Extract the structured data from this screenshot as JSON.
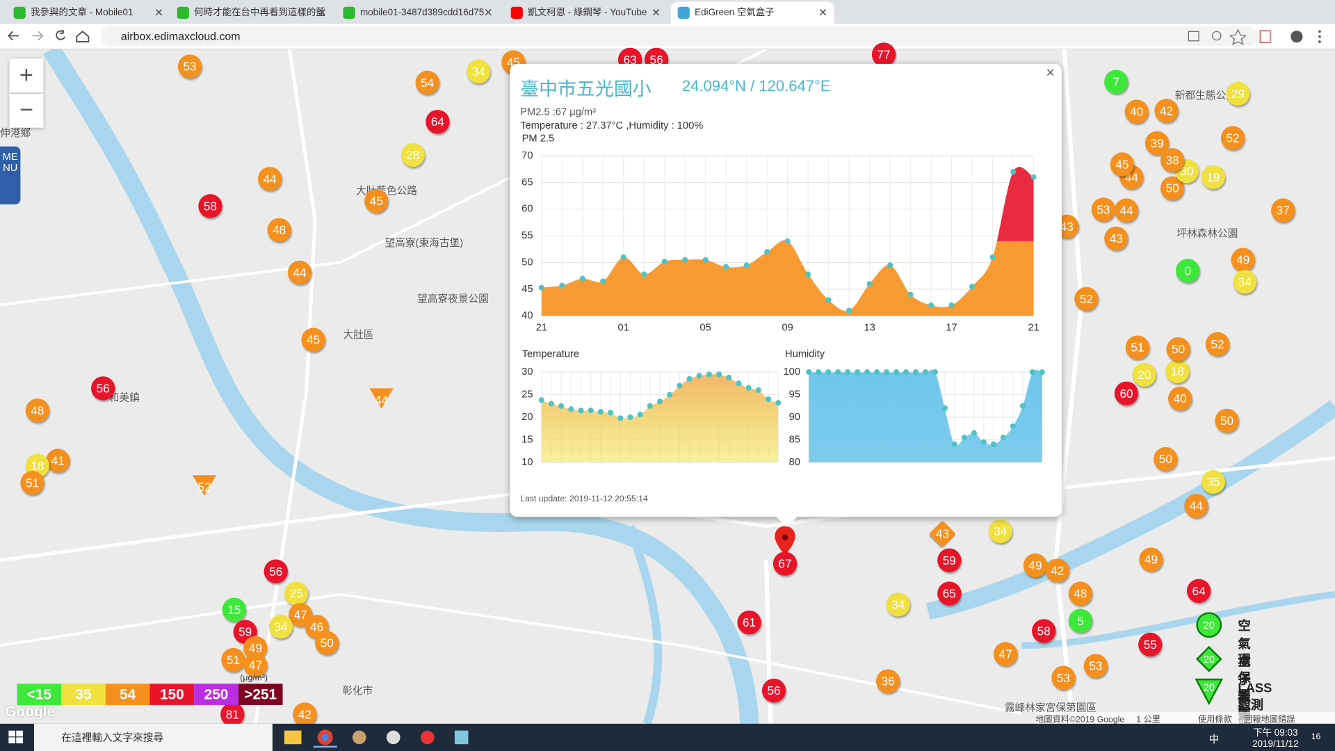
{
  "browser": {
    "tabs": [
      "我參與的文章 - Mobile01",
      "何時才能在台中再看到這樣的藍",
      "mobile01-3487d389cdd16d75",
      "凱文柯恩 - 綠鋼琴 - YouTube",
      "EdiGreen 空氣盒子"
    ],
    "url": "airbox.edimaxcloud.com"
  },
  "map": {
    "zoom_in": "+",
    "zoom_out": "−",
    "menu": "MENU",
    "places": [
      "大肚區",
      "彰化市",
      "望高寮(東海古堡)",
      "望高寮夜景公園",
      "大肚藍色公路",
      "伸港鄉",
      "和美鎮",
      "坪林森林公園",
      "新都生態公園",
      "霧峰林家宮保第園區"
    ],
    "markers": [
      53,
      54,
      34,
      45,
      63,
      56,
      77,
      64,
      28,
      44,
      45,
      58,
      48,
      44,
      45,
      44,
      56,
      48,
      41,
      18,
      51,
      52,
      56,
      25,
      15,
      47,
      34,
      46,
      59,
      50,
      49,
      51,
      47,
      42,
      81,
      67,
      61,
      56,
      43,
      34,
      59,
      65,
      34,
      36,
      49,
      42,
      48,
      5,
      58,
      47,
      53,
      53,
      55,
      64,
      49,
      44,
      35,
      50,
      50,
      60,
      40,
      20,
      18,
      51,
      50,
      52,
      52,
      0,
      49,
      34,
      43,
      53,
      44,
      37,
      43,
      44,
      45,
      50,
      30,
      19,
      39,
      38,
      52,
      40,
      42,
      7,
      29
    ]
  },
  "popup": {
    "close": "×",
    "title": "臺中市五光國小",
    "coords": "24.094°N / 120.647°E",
    "pm": "PM2.5 :67 μg/m³",
    "env": "Temperature : 27.37°C ,Humidity : 100%",
    "updated": "Last update: 2019-11-12 20:55:14"
  },
  "chart_data": [
    {
      "type": "area",
      "title": "PM 2.5",
      "categories": [
        "21",
        null,
        null,
        null,
        "01",
        null,
        null,
        null,
        "05",
        null,
        null,
        null,
        "09",
        null,
        null,
        null,
        "13",
        null,
        null,
        null,
        "17",
        null,
        null,
        null,
        "21"
      ],
      "values": [
        45.3,
        45.7,
        47,
        46.5,
        51,
        47.8,
        50.2,
        50.5,
        50.5,
        49.2,
        49.5,
        52,
        54,
        47.8,
        43,
        41,
        46,
        49.5,
        44,
        42,
        42,
        45.5,
        51,
        67,
        66
      ],
      "ylim": [
        40,
        70
      ],
      "yticks": [
        40,
        45,
        50,
        55,
        60,
        65,
        70
      ],
      "grid": true,
      "color": "#4fc3c3"
    },
    {
      "type": "area",
      "title": "Temperature",
      "values": [
        23.8,
        23,
        22.5,
        21.8,
        21.5,
        21.5,
        21.2,
        21,
        19.8,
        20,
        20.6,
        22.5,
        23.5,
        25,
        27,
        28.5,
        29.2,
        29.5,
        29.5,
        28.8,
        27.5,
        26.5,
        26,
        24,
        23.2
      ],
      "ylim": [
        10,
        30
      ],
      "yticks": [
        10,
        15,
        20,
        25,
        30
      ],
      "grid": true,
      "color": "#f2b46a"
    },
    {
      "type": "area",
      "title": "Humidity",
      "values": [
        100,
        100,
        100,
        100,
        100,
        100,
        100,
        100,
        100,
        100,
        100,
        100,
        100,
        100,
        92,
        84,
        85.5,
        86.5,
        84.5,
        84,
        85.5,
        88,
        92.5,
        100,
        100
      ],
      "ylim": [
        80,
        100
      ],
      "yticks": [
        80,
        85,
        90,
        95,
        100
      ],
      "grid": true,
      "color": "#6ec6ea"
    }
  ],
  "legend": {
    "levels": [
      {
        "label": "<15",
        "value": 15,
        "color": "#3ee83a"
      },
      {
        "label": "35",
        "value": 35,
        "color": "#f0e040"
      },
      {
        "label": "54",
        "value": 54,
        "color": "#f5901e"
      },
      {
        "label": "150",
        "value": 150,
        "color": "#e8142a"
      },
      {
        "label": "250",
        "value": 250,
        "color": "#b92ee0"
      },
      {
        "label": ">251",
        "value": 251,
        "color": "#7e0023"
      }
    ],
    "unit": "(μg/m³)"
  },
  "stations": [
    {
      "label": "空氣盒子觀測點",
      "value": 20
    },
    {
      "label": "環保署觀測站",
      "value": 20
    },
    {
      "label": "LASS觀測站",
      "value": 20
    }
  ],
  "attribution": {
    "data": "地圖資料©2019 Google",
    "scale": "1 公里",
    "terms": "使用條款",
    "report": "回報地圖錯誤",
    "google": "Google"
  },
  "taskbar": {
    "search": "在這裡輸入文字來搜尋",
    "ime": "中",
    "time": "下午 09:03",
    "date": "2019/11/12",
    "notify": "16"
  }
}
